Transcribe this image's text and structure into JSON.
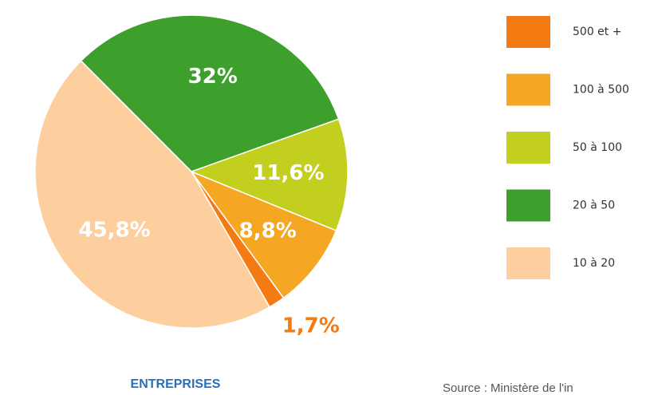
{
  "chart_data": {
    "type": "pie",
    "categories": [
      "500 et +",
      "100 à 500",
      "50 à 100",
      "20 à 50",
      "10 à 20"
    ],
    "values": [
      1.7,
      8.8,
      11.6,
      32,
      45.8
    ],
    "value_labels": [
      "1,7%",
      "8,8%",
      "11,6%",
      "32%",
      "45,8%"
    ],
    "colors": [
      "#f47a12",
      "#f5a623",
      "#c3cf1e",
      "#3d9f2c",
      "#fdcf9f"
    ],
    "title": "ENTREPRISES",
    "source": "Source : Ministère de l'in",
    "legend": "right"
  }
}
